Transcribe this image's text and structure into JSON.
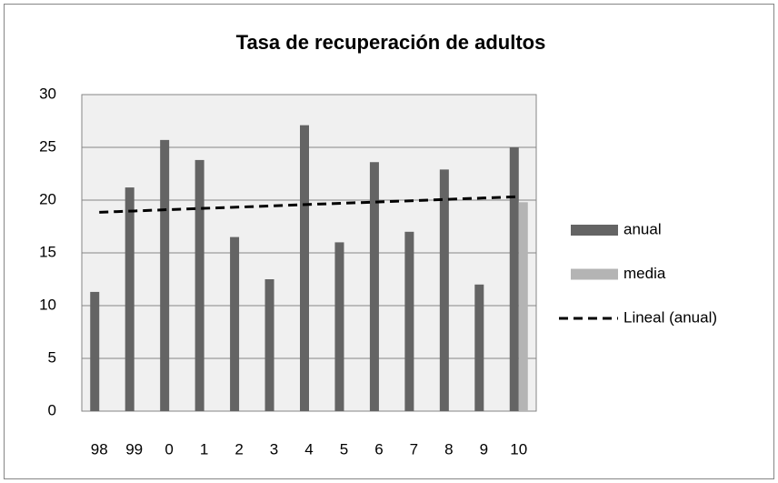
{
  "chart_data": {
    "type": "bar",
    "title": "Tasa de recuperación de adultos",
    "categories": [
      "98",
      "99",
      "0",
      "1",
      "2",
      "3",
      "4",
      "5",
      "6",
      "7",
      "8",
      "9",
      "10"
    ],
    "series": [
      {
        "name": "anual",
        "color": "#646464",
        "values": [
          11.3,
          21.2,
          25.7,
          23.8,
          16.5,
          12.5,
          27.1,
          16.0,
          23.6,
          17.0,
          22.9,
          12.0,
          25.0
        ]
      },
      {
        "name": "media",
        "color": "#b4b4b4",
        "values": [
          null,
          null,
          null,
          null,
          null,
          null,
          null,
          null,
          null,
          null,
          null,
          null,
          19.8
        ]
      },
      {
        "name": "Lineal (anual)",
        "color": "#000000",
        "type": "line",
        "dashed": true,
        "values": [
          18.85,
          18.97,
          19.1,
          19.22,
          19.34,
          19.46,
          19.59,
          19.71,
          19.83,
          19.95,
          20.08,
          20.2,
          20.32
        ]
      }
    ],
    "ylim": [
      0,
      30
    ],
    "yticks": [
      0,
      5,
      10,
      15,
      20,
      25,
      30
    ],
    "grid": true,
    "legend": "right"
  }
}
